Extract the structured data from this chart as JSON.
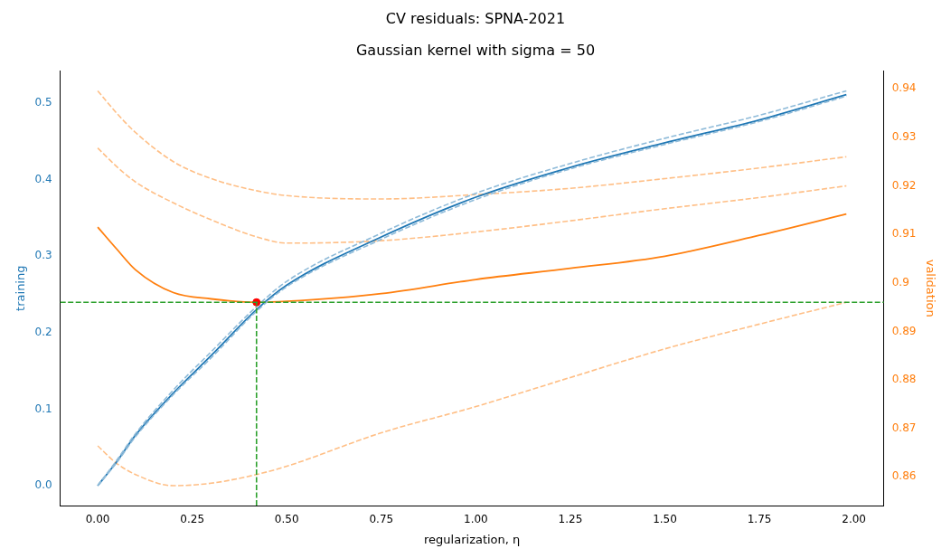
{
  "chart_data": {
    "type": "line",
    "title": "CV residuals: SPNA-2021",
    "subtitle": "Gaussian kernel with sigma = 50",
    "xlabel": "regularization, η",
    "ylabel": "training",
    "y2label": "validation",
    "xlim": [
      -0.099,
      2.079
    ],
    "ylim": [
      -0.026,
      0.542
    ],
    "y2lim": [
      0.8541,
      0.9437
    ],
    "xticks": [
      {
        "value": 0,
        "label": "0.00"
      },
      {
        "value": 0.25,
        "label": "0.25"
      },
      {
        "value": 0.5,
        "label": "0.50"
      },
      {
        "value": 0.75,
        "label": "0.75"
      },
      {
        "value": 1,
        "label": "1.00"
      },
      {
        "value": 1.25,
        "label": "1.25"
      },
      {
        "value": 1.5,
        "label": "1.50"
      },
      {
        "value": 1.75,
        "label": "1.75"
      },
      {
        "value": 2,
        "label": "2.00"
      }
    ],
    "yticks": [
      {
        "value": 0,
        "label": "0.0"
      },
      {
        "value": 0.1,
        "label": "0.1"
      },
      {
        "value": 0.2,
        "label": "0.2"
      },
      {
        "value": 0.3,
        "label": "0.3"
      },
      {
        "value": 0.4,
        "label": "0.4"
      },
      {
        "value": 0.5,
        "label": "0.5"
      }
    ],
    "y2ticks": [
      0.86,
      0.87,
      0.88,
      0.89,
      0.9,
      0.91,
      0.92,
      0.93,
      0.94
    ],
    "x": [
      0,
      0.05,
      0.1,
      0.2,
      0.3,
      0.42,
      0.5,
      0.75,
      1,
      1.25,
      1.5,
      1.75,
      1.98
    ],
    "grid": false,
    "legend": false,
    "marker": "none",
    "series": [
      {
        "color": "#8fbbd9",
        "line_style": "dashed",
        "values": [
          0,
          0.033,
          0.068,
          0.125,
          0.175,
          0.234,
          0.267,
          0.33,
          0.382,
          0.421,
          0.454,
          0.484,
          0.516
        ]
      },
      {
        "color": "#8fbbd9",
        "line_style": "dashed",
        "values": [
          0,
          0.03,
          0.064,
          0.119,
          0.167,
          0.228,
          0.26,
          0.322,
          0.374,
          0.414,
          0.446,
          0.476,
          0.509
        ]
      },
      {
        "color": "#1f77b4",
        "line_style": "solid",
        "values": [
          0,
          0.031,
          0.066,
          0.121,
          0.17,
          0.23,
          0.262,
          0.325,
          0.377,
          0.416,
          0.448,
          0.478,
          0.511
        ]
      },
      {
        "color": "#ffbf86",
        "line_style": "dashed",
        "axis": "y2",
        "values": [
          0.9396,
          0.935,
          0.931,
          0.925,
          0.9215,
          0.919,
          0.918,
          0.9173,
          0.9182,
          0.9195,
          0.9215,
          0.9237,
          0.926
        ]
      },
      {
        "color": "#ffbf86",
        "line_style": "dashed",
        "axis": "y2",
        "values": [
          0.9278,
          0.924,
          0.9208,
          0.9165,
          0.913,
          0.9095,
          0.9082,
          0.9087,
          0.9105,
          0.9128,
          0.9153,
          0.9176,
          0.92
        ]
      },
      {
        "color": "#ff7f0e",
        "line_style": "solid",
        "axis": "y2",
        "values": [
          0.9115,
          0.907,
          0.9027,
          0.898,
          0.8967,
          0.896,
          0.8962,
          0.8978,
          0.9007,
          0.903,
          0.9055,
          0.9098,
          0.9142
        ]
      },
      {
        "color": "#ffbf86",
        "line_style": "dashed",
        "axis": "y2",
        "values": [
          0.8664,
          0.8628,
          0.8605,
          0.8582,
          0.8587,
          0.8605,
          0.8622,
          0.8691,
          0.8745,
          0.8805,
          0.8864,
          0.8915,
          0.896
        ]
      },
      {
        "type": "scatter",
        "color": "#ff0000",
        "marker": "circle",
        "axis": "y2",
        "x": [
          0.42
        ],
        "values": [
          0.896
        ]
      }
    ],
    "ref_lines": [
      {
        "axis": "x",
        "value": 0.42,
        "color": "#2ca02c",
        "line_style": "dashed"
      },
      {
        "axis": "y2",
        "value": 0.896,
        "color": "#2ca02c",
        "line_style": "dashed"
      }
    ]
  }
}
